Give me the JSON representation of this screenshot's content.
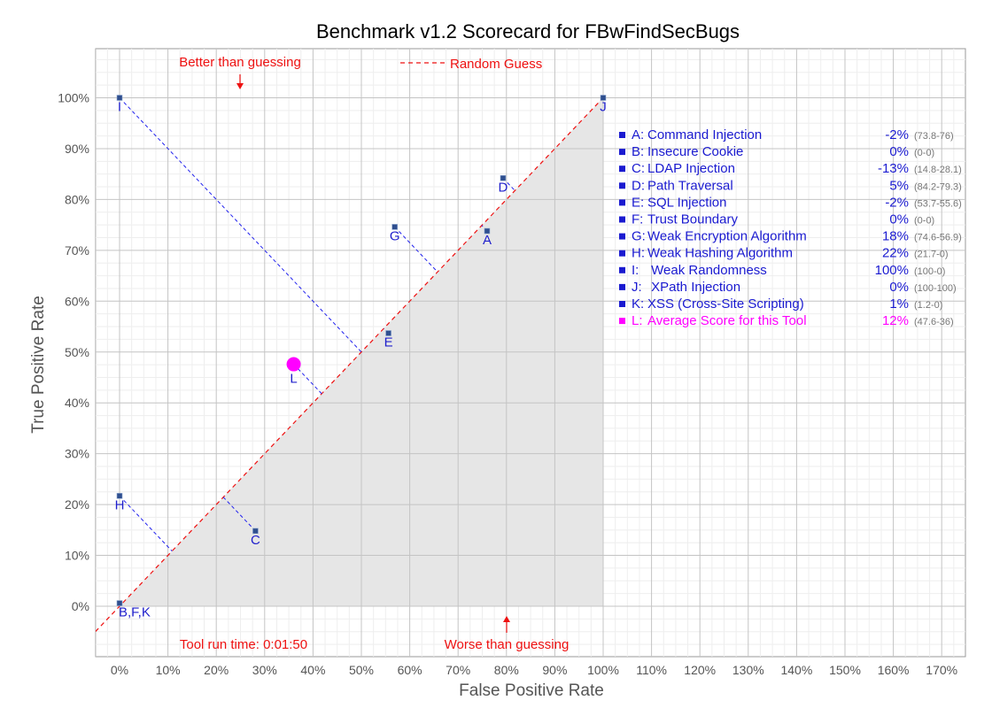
{
  "chart_data": {
    "type": "scatter",
    "title": "Benchmark v1.2 Scorecard for FBwFindSecBugs",
    "xlabel": "False Positive Rate",
    "ylabel": "True Positive Rate",
    "xlim": [
      -5,
      175
    ],
    "ylim": [
      -10,
      110
    ],
    "x_ticks": [
      "0%",
      "10%",
      "20%",
      "30%",
      "40%",
      "50%",
      "60%",
      "70%",
      "80%",
      "90%",
      "100%",
      "110%",
      "120%",
      "130%",
      "140%",
      "150%",
      "160%",
      "170%"
    ],
    "y_ticks": [
      "0%",
      "10%",
      "20%",
      "30%",
      "40%",
      "50%",
      "60%",
      "70%",
      "80%",
      "90%",
      "100%"
    ],
    "grid": true,
    "random_guess_label": "Random Guess",
    "annotations": {
      "better": "Better than guessing",
      "worse": "Worse than guessing",
      "runtime": "Tool run time: 0:01:50"
    },
    "colors": {
      "points": "#2f4f8f",
      "average": "#ff00ff",
      "guess_line": "#ee1111",
      "shade": "#e6e6e6",
      "legend_text": "#1a1ad0",
      "range_text": "#777777"
    },
    "points": [
      {
        "label": "A",
        "x": 76,
        "y": 73.8
      },
      {
        "label": "B,F,K",
        "x": 0,
        "y": 0.6
      },
      {
        "label": "C",
        "x": 28.1,
        "y": 14.8
      },
      {
        "label": "D",
        "x": 79.3,
        "y": 84.2
      },
      {
        "label": "E",
        "x": 55.6,
        "y": 53.7
      },
      {
        "label": "G",
        "x": 56.9,
        "y": 74.6
      },
      {
        "label": "H",
        "x": 0,
        "y": 21.7
      },
      {
        "label": "I",
        "x": 0,
        "y": 100
      },
      {
        "label": "J",
        "x": 100,
        "y": 100
      },
      {
        "label": "L",
        "x": 36,
        "y": 47.6,
        "average": true
      }
    ],
    "legend": [
      {
        "key": "A:",
        "name": "Command Injection",
        "score": "-2%",
        "range": "(73.8-76)"
      },
      {
        "key": "B:",
        "name": "Insecure Cookie",
        "score": "0%",
        "range": "(0-0)"
      },
      {
        "key": "C:",
        "name": "LDAP Injection",
        "score": "-13%",
        "range": "(14.8-28.1)"
      },
      {
        "key": "D:",
        "name": "Path Traversal",
        "score": "5%",
        "range": "(84.2-79.3)"
      },
      {
        "key": "E:",
        "name": "SQL Injection",
        "score": "-2%",
        "range": "(53.7-55.6)"
      },
      {
        "key": "F:",
        "name": "Trust Boundary",
        "score": "0%",
        "range": "(0-0)"
      },
      {
        "key": "G:",
        "name": "Weak Encryption Algorithm",
        "score": "18%",
        "range": "(74.6-56.9)"
      },
      {
        "key": "H:",
        "name": "Weak Hashing Algorithm",
        "score": "22%",
        "range": "(21.7-0)"
      },
      {
        "key": "I:",
        "name": " Weak Randomness",
        "score": "100%",
        "range": "(100-0)"
      },
      {
        "key": "J:",
        "name": " XPath Injection",
        "score": "0%",
        "range": "(100-100)"
      },
      {
        "key": "K:",
        "name": "XSS (Cross-Site Scripting)",
        "score": "1%",
        "range": "(1.2-0)"
      },
      {
        "key": "L:",
        "name": "Average Score for this Tool",
        "score": "12%",
        "range": "(47.6-36)",
        "average": true
      }
    ]
  }
}
